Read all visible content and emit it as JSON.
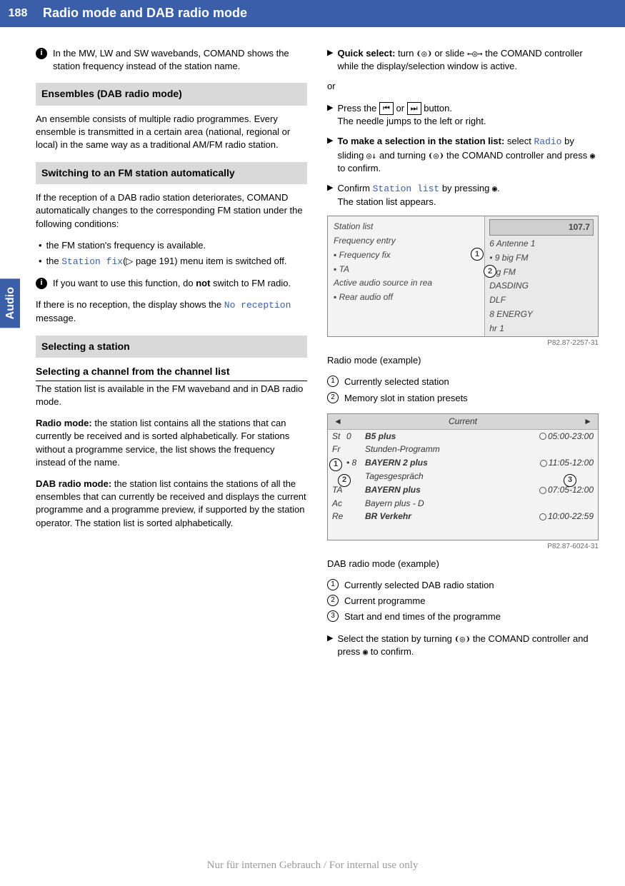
{
  "page_number": "188",
  "header_title": "Radio mode and DAB radio mode",
  "side_tab": "Audio",
  "left": {
    "info1": "In the MW, LW and SW wavebands, COMAND shows the station frequency instead of the station name.",
    "h1": "Ensembles (DAB radio mode)",
    "p1": "An ensemble consists of multiple radio programmes. Every ensemble is transmitted in a certain area (national, regional or local) in the same way as a traditional AM/FM radio station.",
    "h2": "Switching to an FM station automatically",
    "p2": "If the reception of a DAB radio station deteriorates, COMAND automatically changes to the corresponding FM station under the following conditions:",
    "b1": "the FM station's frequency is available.",
    "b2a": "the ",
    "b2_code": "Station fix",
    "b2b": "(▷ page 191) menu item is switched off.",
    "info2a": "If you want to use this function, do ",
    "info2_bold": "not",
    "info2b": " switch to FM radio.",
    "p3a": "If there is no reception, the display shows the ",
    "p3_code": "No reception",
    "p3b": " message.",
    "h3": "Selecting a station",
    "sub1": "Selecting a channel from the channel list",
    "p4": "The station list is available in the FM waveband and in DAB radio mode.",
    "p5_bold": "Radio mode:",
    "p5": " the station list contains all the stations that can currently be received and is sorted alphabetically. For stations without a programme service, the list shows the frequency instead of the name.",
    "p6_bold": "DAB radio mode:",
    "p6": " the station list contains the stations of all the ensembles that can currently be received and displays the current programme and a programme preview, if supported by the station operator. The station list is sorted alphabetically."
  },
  "right": {
    "t1_bold": "Quick select:",
    "t1a": " turn ",
    "t1_ctl1": "❨◎❩",
    "t1b": " or slide ",
    "t1_ctl2": "←◎→",
    "t1c": " the COMAND controller while the display/selection window is active.",
    "or": "or",
    "t2a": "Press the ",
    "t2_btn1": "⏮",
    "t2b": " or ",
    "t2_btn2": "⏭",
    "t2c": " button.",
    "t2d": "The needle jumps to the left or right.",
    "t3_bold": "To make a selection in the station list:",
    "t3a": " select ",
    "t3_code": "Radio",
    "t3b": " by sliding ",
    "t3_ctl1": "◎↓",
    "t3c": " and turning ",
    "t3_ctl2": "❨◎❩",
    "t3d": " the COMAND controller and press ",
    "t3_ctl3": "◉",
    "t3e": " to confirm.",
    "t4a": "Confirm ",
    "t4_code": "Station list",
    "t4b": " by pressing ",
    "t4_ctl": "◉",
    "t4c": ".",
    "t4d": "The station list appears.",
    "fig1": {
      "freq": "107.7",
      "left_items": [
        "Station list",
        "Frequency entry",
        "Frequency fix",
        "TA",
        "Active audio source in rea",
        "Rear audio off"
      ],
      "right_items": [
        "6 Antenne 1",
        "• 9 big FM",
        "big FM",
        "DASDING",
        "DLF",
        "8 ENERGY",
        "hr 1"
      ],
      "ref": "P82.87-2257-31"
    },
    "fig1_caption": "Radio mode (example)",
    "fig1_l1": "Currently selected station",
    "fig1_l2": "Memory slot in station presets",
    "fig2": {
      "header_mid": "Current",
      "rows": [
        {
          "left": "St",
          "num": "0",
          "name": "B5 plus",
          "bold": true,
          "time": "05:00-23:00"
        },
        {
          "left": "Fr",
          "num": "",
          "name": "Stunden-Programm",
          "bold": false,
          "time": ""
        },
        {
          "left": "",
          "num": "• 8",
          "name": "BAYERN 2 plus",
          "bold": true,
          "time": "11:05-12:00"
        },
        {
          "left": "",
          "num": "",
          "name": "Tagesgespräch",
          "bold": false,
          "time": ""
        },
        {
          "left": "TA",
          "num": "",
          "name": "BAYERN plus",
          "bold": true,
          "time": "07:05-12:00"
        },
        {
          "left": "Ac",
          "num": "",
          "name": "Bayern plus - D",
          "bold": false,
          "time": ""
        },
        {
          "left": "Re",
          "num": "",
          "name": "BR Verkehr",
          "bold": true,
          "time": "10:00-22:59"
        }
      ],
      "ref": "P82.87-6024-31"
    },
    "fig2_caption": "DAB radio mode (example)",
    "fig2_l1": "Currently selected DAB radio station",
    "fig2_l2": "Current programme",
    "fig2_l3": "Start and end times of the programme",
    "t5a": "Select the station by turning ",
    "t5_ctl1": "❨◎❩",
    "t5b": " the COMAND controller and press ",
    "t5_ctl2": "◉",
    "t5c": " to confirm."
  },
  "footer": "Nur für internen Gebrauch / For internal use only"
}
